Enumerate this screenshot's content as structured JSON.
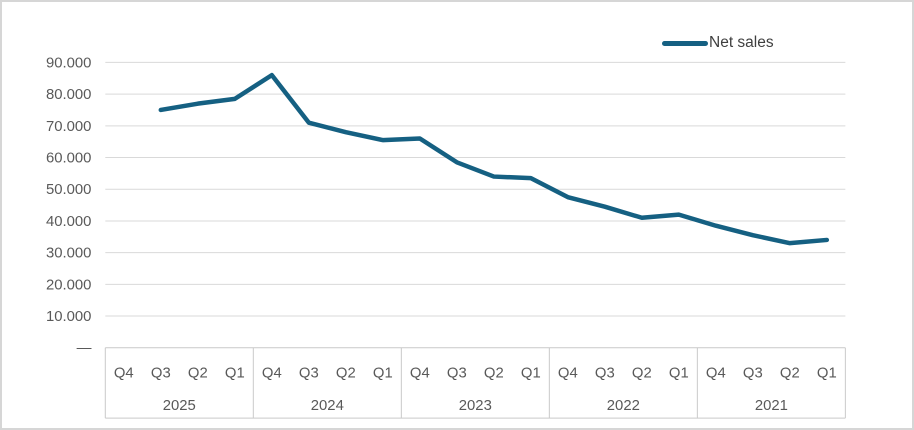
{
  "window": {
    "background": "#ffffff",
    "border_color": "#d6d6d6"
  },
  "legend": {
    "label": "Net sales"
  },
  "chart_data": {
    "type": "line",
    "title": "",
    "legend_position": "top-right",
    "grid": true,
    "series": [
      {
        "name": "Net sales",
        "color": "#156082",
        "values": [
          null,
          75000,
          77000,
          78500,
          86000,
          71000,
          68000,
          65500,
          66000,
          58500,
          54000,
          53500,
          47500,
          44500,
          41000,
          42000,
          38500,
          35500,
          33000,
          34000
        ]
      }
    ],
    "categories": [
      "Q4",
      "Q3",
      "Q2",
      "Q1",
      "Q4",
      "Q3",
      "Q2",
      "Q1",
      "Q4",
      "Q3",
      "Q2",
      "Q1",
      "Q4",
      "Q3",
      "Q2",
      "Q1",
      "Q4",
      "Q3",
      "Q2",
      "Q1"
    ],
    "category_groups": [
      {
        "label": "2025",
        "span": 4
      },
      {
        "label": "2024",
        "span": 4
      },
      {
        "label": "2023",
        "span": 4
      },
      {
        "label": "2022",
        "span": 4
      },
      {
        "label": "2021",
        "span": 4
      }
    ],
    "y_axis": {
      "min": 0,
      "max": 90000,
      "tick_interval": 10000,
      "ticks": [
        {
          "value": 0,
          "label": "—"
        },
        {
          "value": 10000,
          "label": "10.000"
        },
        {
          "value": 20000,
          "label": "20.000"
        },
        {
          "value": 30000,
          "label": "30.000"
        },
        {
          "value": 40000,
          "label": "40.000"
        },
        {
          "value": 50000,
          "label": "50.000"
        },
        {
          "value": 60000,
          "label": "60.000"
        },
        {
          "value": 70000,
          "label": "70.000"
        },
        {
          "value": 80000,
          "label": "80.000"
        },
        {
          "value": 90000,
          "label": "90.000"
        }
      ]
    },
    "colors": {
      "gridline": "#d9d9d9",
      "axis_box": "#c9c9c9",
      "tick_text": "#595959",
      "legend_text": "#3f3f3f"
    }
  }
}
